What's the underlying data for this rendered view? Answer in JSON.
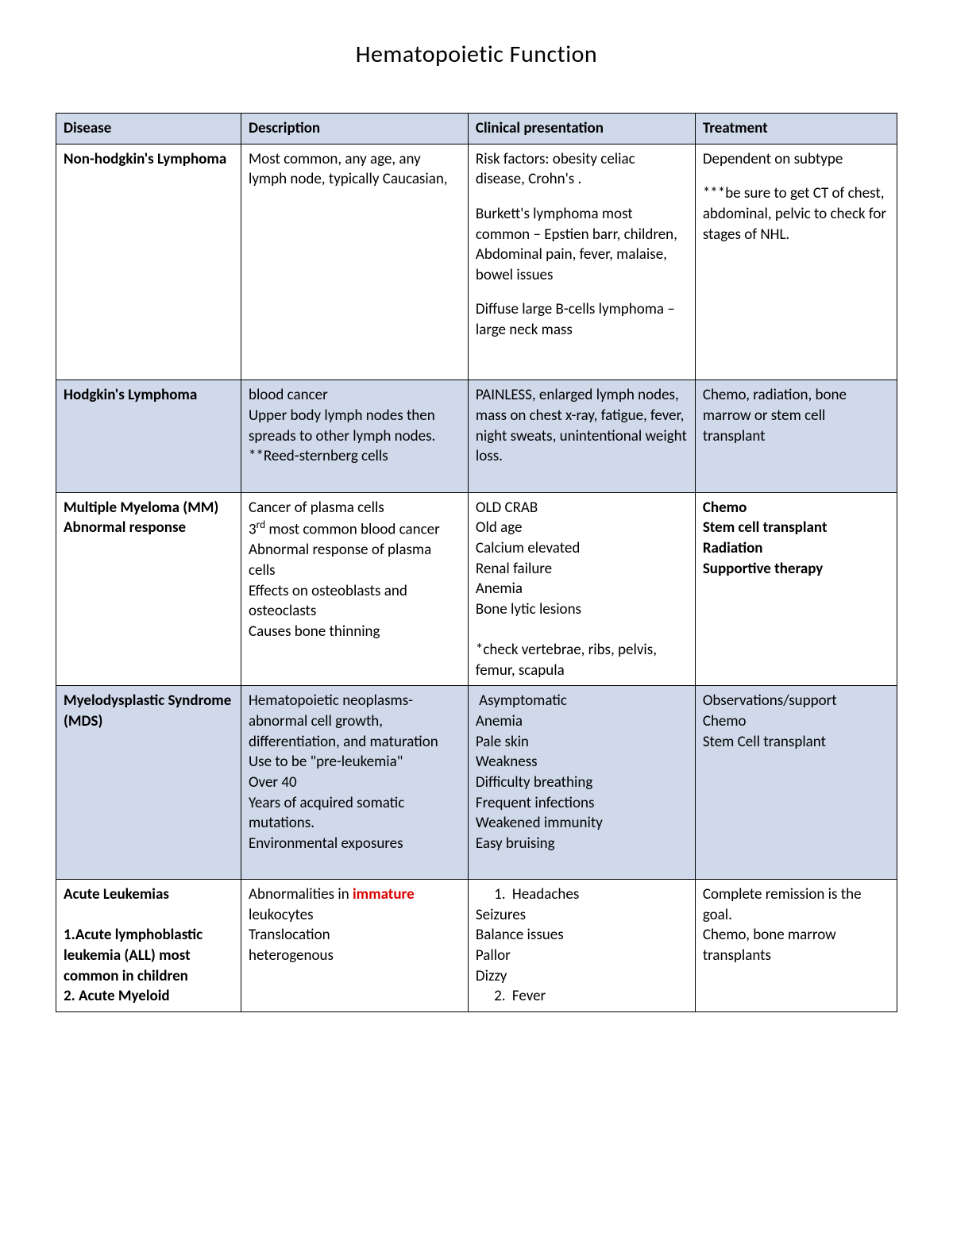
{
  "title": "Hematopoietic Function",
  "colors": {
    "header_bg": "#cfd9ea",
    "shaded_bg": "#cfd9ea",
    "plain_bg": "#ffffff",
    "border": "#000000",
    "text": "#000000",
    "accent_red": "#d90000"
  },
  "typography": {
    "font_family": "Calibri",
    "title_fontsize_pt": 22,
    "cell_fontsize_pt": 14
  },
  "table": {
    "column_widths_pct": [
      22,
      27,
      27,
      24
    ],
    "headers": [
      "Disease",
      "Description",
      "Clinical presentation",
      "Treatment"
    ],
    "rows": [
      {
        "shaded": false,
        "disease_html": "Non-hodgkin's Lymphoma",
        "description_html": "Most common, any age, any lymph node, typically Caucasian,",
        "clinical_html": "<div class='para'>Risk factors: obesity celiac disease, Crohn's .</div><div class='para'>Burkett's lymphoma most common – Epstien barr, children,<br>Abdominal pain, fever, malaise, bowel issues</div><div class='para'>Diffuse large B-cells lymphoma – large neck mass</div><div class='para'>&nbsp;</div>",
        "treatment_html": "<div class='para'>Dependent on subtype</div><div class='para'>***be sure to get CT of chest, abdominal, pelvic to check for stages of NHL.</div>"
      },
      {
        "shaded": true,
        "disease_html": "Hodgkin's Lymphoma",
        "description_html": "blood cancer<br>Upper body lymph nodes then spreads to other lymph nodes.<br>**Reed-sternberg cells<br>&nbsp;",
        "clinical_html": "PAINLESS, enlarged lymph nodes, mass on chest x-ray, fatigue, fever, night sweats, unintentional weight loss.",
        "treatment_html": "Chemo, radiation, bone marrow or stem cell transplant"
      },
      {
        "shaded": false,
        "disease_html": "Multiple Myeloma (MM)<br>Abnormal response",
        "description_html": "Cancer of plasma cells<br>3<sup>rd</sup> most common blood cancer<br>Abnormal response of plasma cells<br>Effects on osteoblasts and osteoclasts<br>Causes bone thinning",
        "clinical_html": "OLD CRAB<br>Old age<br>Calcium elevated<br>Renal failure<br>Anemia<br>Bone lytic lesions<br><br>*check vertebrae, ribs, pelvis, femur, scapula",
        "treatment_html": "<span class='bold'>Chemo<br>Stem cell transplant<br>Radiation<br>Supportive therapy</span>"
      },
      {
        "shaded": true,
        "disease_html": "Myelodysplastic Syndrome (MDS)",
        "description_html": "Hematopoietic neoplasms- abnormal cell growth, differentiation, and maturation<br>Use to be \"pre-leukemia\"<br>Over 40<br>Years of acquired somatic mutations.<br>Environmental exposures<br>&nbsp;",
        "clinical_html": "&nbsp;Asymptomatic<br>Anemia<br>Pale skin<br>Weakness<br>Difficulty breathing<br>Frequent infections<br>Weakened immunity<br>Easy bruising",
        "treatment_html": "Observations/support<br>Chemo<br>Stem Cell transplant"
      },
      {
        "shaded": false,
        "disease_html": "Acute Leukemias<br><br>1.Acute lymphoblastic leukemia (ALL) most common in children<br>2. Acute Myeloid",
        "description_html": "Abnormalities in <span class='red'>immature</span> leukocytes<br>Translocation<br>heterogenous",
        "clinical_html": "<ol class='inner'><li>Headaches</li></ol>Seizures<br>Balance issues<br>Pallor<br>Dizzy<ol class='inner' start='2'><li>Fever</li></ol>",
        "treatment_html": "Complete remission is the goal.<br>Chemo, bone marrow transplants"
      }
    ]
  }
}
